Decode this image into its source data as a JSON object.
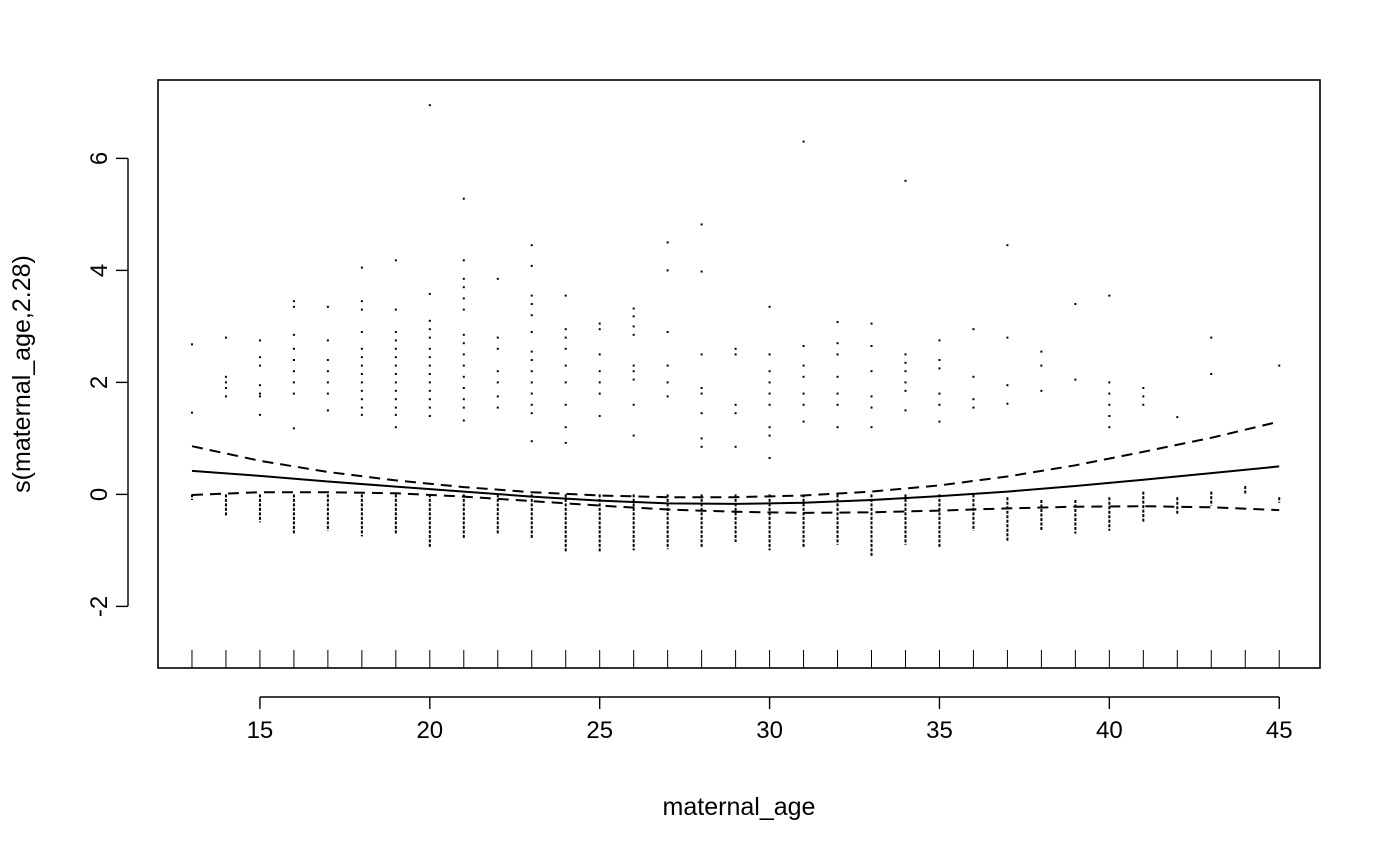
{
  "chart_data": {
    "type": "line",
    "title": "",
    "xlabel": "maternal_age",
    "ylabel": "s(maternal_age,2.28)",
    "xlim": [
      12,
      46.2
    ],
    "ylim": [
      -3.1,
      7.4
    ],
    "xticks": [
      15,
      20,
      25,
      30,
      35,
      40,
      45
    ],
    "yticks": [
      -2,
      0,
      2,
      4,
      6
    ],
    "grid": false,
    "series": [
      {
        "style": "solid",
        "x": [
          13,
          15,
          17,
          19,
          21,
          23,
          25,
          27,
          29,
          31,
          33,
          35,
          37,
          39,
          41,
          43,
          45
        ],
        "y": [
          0.42,
          0.33,
          0.23,
          0.14,
          0.05,
          -0.04,
          -0.11,
          -0.16,
          -0.17,
          -0.15,
          -0.1,
          -0.03,
          0.05,
          0.15,
          0.26,
          0.38,
          0.5
        ]
      },
      {
        "style": "dashed",
        "x": [
          13,
          15,
          17,
          19,
          21,
          23,
          25,
          27,
          29,
          31,
          33,
          35,
          37,
          39,
          41,
          43,
          45
        ],
        "y": [
          0.86,
          0.6,
          0.4,
          0.25,
          0.13,
          0.04,
          -0.02,
          -0.05,
          -0.05,
          -0.02,
          0.05,
          0.16,
          0.32,
          0.52,
          0.76,
          1.01,
          1.3
        ]
      },
      {
        "style": "dashed",
        "x": [
          13,
          15,
          17,
          19,
          21,
          23,
          25,
          27,
          29,
          31,
          33,
          35,
          37,
          39,
          41,
          43,
          45
        ],
        "y": [
          -0.01,
          0.04,
          0.04,
          0.02,
          -0.04,
          -0.12,
          -0.2,
          -0.27,
          -0.31,
          -0.33,
          -0.32,
          -0.29,
          -0.25,
          -0.22,
          -0.21,
          -0.23,
          -0.28
        ]
      }
    ],
    "rug": [
      13,
      14,
      15,
      16,
      17,
      18,
      19,
      20,
      21,
      22,
      23,
      24,
      25,
      26,
      27,
      28,
      29,
      30,
      31,
      32,
      33,
      34,
      35,
      36,
      37,
      38,
      39,
      40,
      41,
      42,
      43,
      44,
      45
    ],
    "residual_columns": [
      {
        "x": 13,
        "min": -0.1,
        "max": 0,
        "points": [
          2.68,
          1.46
        ]
      },
      {
        "x": 14,
        "min": -0.4,
        "max": 0,
        "points": [
          2.8,
          2.1,
          2.0,
          1.9,
          1.75
        ]
      },
      {
        "x": 15,
        "min": -0.5,
        "max": 0,
        "points": [
          2.75,
          2.45,
          2.3,
          1.95,
          1.8,
          1.75,
          1.42
        ]
      },
      {
        "x": 16,
        "min": -0.7,
        "max": 0,
        "points": [
          3.45,
          3.35,
          2.85,
          2.6,
          2.4,
          2.2,
          2.0,
          1.8,
          1.18
        ]
      },
      {
        "x": 17,
        "min": -0.65,
        "max": 0,
        "points": [
          3.35,
          2.75,
          2.4,
          2.2,
          2.0,
          1.8,
          1.5
        ]
      },
      {
        "x": 18,
        "min": -0.75,
        "max": 0,
        "points": [
          4.05,
          3.45,
          3.3,
          2.9,
          2.6,
          2.45,
          2.3,
          2.15,
          2.0,
          1.85,
          1.7,
          1.55,
          1.42
        ]
      },
      {
        "x": 19,
        "min": -0.7,
        "max": 0,
        "points": [
          4.18,
          3.3,
          2.9,
          2.75,
          2.6,
          2.45,
          2.3,
          2.15,
          2.0,
          1.85,
          1.7,
          1.55,
          1.42,
          1.2
        ]
      },
      {
        "x": 20,
        "min": -0.95,
        "max": 0,
        "points": [
          6.95,
          3.58,
          3.1,
          2.95,
          2.8,
          2.6,
          2.45,
          2.3,
          2.15,
          2.0,
          1.85,
          1.7,
          1.55,
          1.4
        ]
      },
      {
        "x": 21,
        "min": -0.8,
        "max": 0,
        "points": [
          5.28,
          4.18,
          3.85,
          3.7,
          3.5,
          3.3,
          2.85,
          2.7,
          2.5,
          2.3,
          2.1,
          1.9,
          1.7,
          1.55,
          1.32
        ]
      },
      {
        "x": 22,
        "min": -0.7,
        "max": 0,
        "points": [
          3.85,
          2.8,
          2.6,
          2.2,
          2.0,
          1.75,
          1.55
        ]
      },
      {
        "x": 23,
        "min": -0.8,
        "max": 0,
        "points": [
          4.45,
          4.08,
          3.55,
          3.4,
          3.2,
          2.9,
          2.55,
          2.4,
          2.2,
          2.0,
          1.8,
          1.6,
          1.45,
          0.95
        ]
      },
      {
        "x": 24,
        "min": -1.02,
        "max": 0,
        "points": [
          3.55,
          2.95,
          2.8,
          2.6,
          2.3,
          2.0,
          1.6,
          1.2,
          0.92
        ]
      },
      {
        "x": 25,
        "min": -1.02,
        "max": 0,
        "points": [
          3.05,
          2.95,
          2.5,
          2.2,
          2.0,
          1.8,
          1.4
        ]
      },
      {
        "x": 26,
        "min": -1.0,
        "max": 0,
        "points": [
          3.32,
          3.18,
          3.0,
          2.85,
          2.3,
          2.2,
          2.05,
          1.6,
          1.05
        ]
      },
      {
        "x": 27,
        "min": -0.98,
        "max": 0,
        "points": [
          4.5,
          4.0,
          2.9,
          2.3,
          2.0,
          1.75
        ]
      },
      {
        "x": 28,
        "min": -0.95,
        "max": 0,
        "points": [
          4.82,
          3.98,
          2.5,
          1.9,
          1.8,
          1.45,
          1.0,
          0.85
        ]
      },
      {
        "x": 29,
        "min": -0.85,
        "max": 0,
        "points": [
          2.6,
          2.5,
          1.6,
          1.45,
          0.85
        ]
      },
      {
        "x": 30,
        "min": -1.0,
        "max": 0,
        "points": [
          3.35,
          2.5,
          2.2,
          2.0,
          1.8,
          1.6,
          1.2,
          1.05,
          0.65
        ]
      },
      {
        "x": 31,
        "min": -0.95,
        "max": 0,
        "points": [
          6.3,
          2.65,
          2.3,
          2.1,
          1.8,
          1.6,
          1.3
        ]
      },
      {
        "x": 32,
        "min": -0.9,
        "max": 0,
        "points": [
          3.08,
          2.7,
          2.5,
          2.1,
          1.8,
          1.6,
          1.2
        ]
      },
      {
        "x": 33,
        "min": -1.12,
        "max": 0,
        "points": [
          3.05,
          2.65,
          2.2,
          1.75,
          1.55,
          1.2
        ]
      },
      {
        "x": 34,
        "min": -0.9,
        "max": 0,
        "points": [
          5.6,
          2.5,
          2.35,
          2.2,
          2.0,
          1.85,
          1.5
        ]
      },
      {
        "x": 35,
        "min": -0.95,
        "max": 0,
        "points": [
          2.75,
          2.4,
          2.25,
          1.8,
          1.6,
          1.3
        ]
      },
      {
        "x": 36,
        "min": -0.65,
        "max": 0,
        "points": [
          2.95,
          2.1,
          1.7,
          1.55
        ]
      },
      {
        "x": 37,
        "min": -0.85,
        "max": -0.05,
        "points": [
          4.45,
          2.8,
          1.95,
          1.62
        ]
      },
      {
        "x": 38,
        "min": -0.65,
        "max": -0.1,
        "points": [
          2.55,
          2.3,
          1.85
        ]
      },
      {
        "x": 39,
        "min": -0.7,
        "max": -0.1,
        "points": [
          3.4,
          2.05
        ]
      },
      {
        "x": 40,
        "min": -0.65,
        "max": -0.05,
        "points": [
          3.55,
          2.0,
          1.8,
          1.6,
          1.4,
          1.2
        ]
      },
      {
        "x": 41,
        "min": -0.5,
        "max": 0.05,
        "points": [
          1.9,
          1.75,
          1.6
        ]
      },
      {
        "x": 42,
        "min": -0.35,
        "max": -0.05,
        "points": [
          1.38
        ]
      },
      {
        "x": 43,
        "min": -0.2,
        "max": 0.05,
        "points": [
          2.8,
          2.15
        ]
      },
      {
        "x": 44,
        "min": 0.0,
        "max": 0.15,
        "points": []
      },
      {
        "x": 45,
        "min": -0.15,
        "max": -0.05,
        "points": [
          2.3
        ]
      }
    ]
  }
}
